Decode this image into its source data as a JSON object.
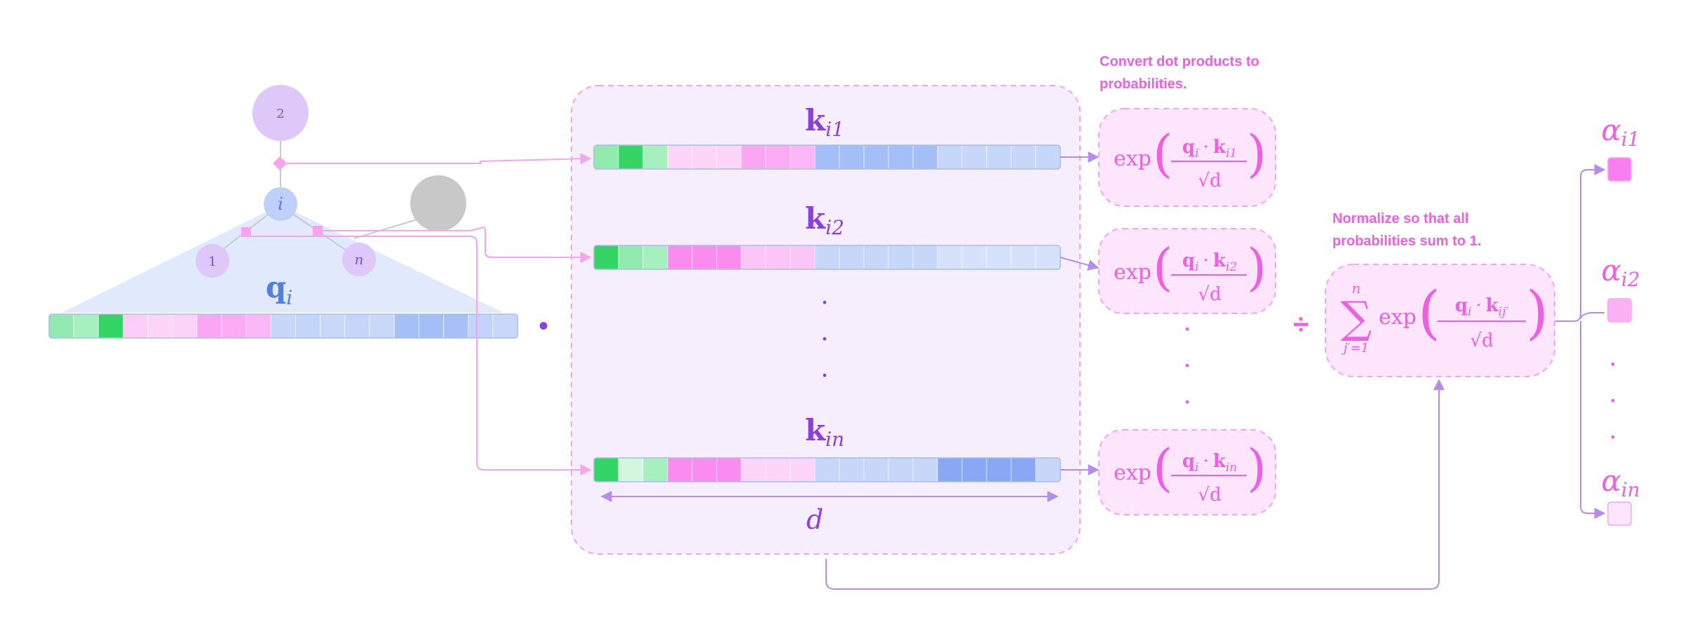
{
  "tree": {
    "root_label": "2",
    "node_i_label": "i",
    "leaf_1_label": "1",
    "leaf_n_label": "n"
  },
  "query": {
    "symbol": "q",
    "subscript": "i",
    "cells": [
      "#93eab0",
      "#a6efbf",
      "#34d465",
      "#fccdf7",
      "#fcd5f8",
      "#fcd3f8",
      "#fba6f3",
      "#fbaaf4",
      "#fbb6f5",
      "#c6d7f9",
      "#c4d5fa",
      "#c8d8f9",
      "#c5d6f9",
      "#c8d8f9",
      "#a5c0f6",
      "#a4bff7",
      "#a7c1f7",
      "#c2d4fa",
      "#c7d8f9"
    ]
  },
  "dot_symbol": "•",
  "keys": [
    {
      "id": "k1",
      "symbol": "k",
      "subscript": "i1",
      "cells": [
        "#93eab0",
        "#34d465",
        "#a6efbf",
        "#fcd5f8",
        "#fcd5f8",
        "#fcd5f8",
        "#fba6f3",
        "#fbaaf4",
        "#fbb6f5",
        "#a4bff7",
        "#a4bff7",
        "#a4bff7",
        "#a4bff7",
        "#a4bff7",
        "#c6d7f9",
        "#c6d7f9",
        "#c6d7f9",
        "#c6d7f9",
        "#c6d7f9"
      ]
    },
    {
      "id": "k2",
      "symbol": "k",
      "subscript": "i2",
      "cells": [
        "#34d465",
        "#93eab0",
        "#a6efbf",
        "#fa8cf0",
        "#fa8cf0",
        "#fa8cf0",
        "#fcc5f7",
        "#fcc5f7",
        "#fcc5f7",
        "#c6d7f9",
        "#c6d7f9",
        "#c6d7f9",
        "#c6d7f9",
        "#c6d7f9",
        "#d6e1fb",
        "#d6e1fb",
        "#d6e1fb",
        "#d6e1fb",
        "#d6e1fb"
      ]
    },
    {
      "id": "kn",
      "symbol": "k",
      "subscript": "in",
      "cells": [
        "#34d465",
        "#d2f7de",
        "#a6efbf",
        "#fa8cf0",
        "#fa8cf0",
        "#fa8cf0",
        "#fcd5f8",
        "#fcd5f8",
        "#fcd5f8",
        "#c6d7f9",
        "#c6d7f9",
        "#c6d7f9",
        "#c6d7f9",
        "#c6d7f9",
        "#88a8f3",
        "#88a8f3",
        "#88a8f3",
        "#88a8f3",
        "#c6d7f9"
      ]
    }
  ],
  "ellipsis": "·",
  "dimension_label": "d",
  "annotations": {
    "convert": [
      "Convert dot products to",
      "probabilities."
    ],
    "normalize": [
      "Normalize so that all",
      "probabilities sum to 1."
    ]
  },
  "formulas": [
    {
      "id": "f1",
      "exp": "exp",
      "numerator_q": "q",
      "numerator_q_sub": "i",
      "dot": "·",
      "numerator_k": "k",
      "numerator_k_sub": "i1",
      "denominator": "√d"
    },
    {
      "id": "f2",
      "exp": "exp",
      "numerator_q": "q",
      "numerator_q_sub": "i",
      "dot": "·",
      "numerator_k": "k",
      "numerator_k_sub": "i2",
      "denominator": "√d"
    },
    {
      "id": "fn",
      "exp": "exp",
      "numerator_q": "q",
      "numerator_q_sub": "i",
      "dot": "·",
      "numerator_k": "k",
      "numerator_k_sub": "in",
      "denominator": "√d"
    }
  ],
  "divide_symbol": "÷",
  "sum_formula": {
    "sigma": "∑",
    "upper": "n",
    "lower": "j′=1",
    "exp": "exp",
    "numerator_q": "q",
    "numerator_q_sub": "i",
    "dot": "·",
    "numerator_k": "k",
    "numerator_k_sub": "ij′",
    "denominator": "√d"
  },
  "outputs": [
    {
      "id": "a1",
      "symbol": "α",
      "subscript": "i1",
      "color": "#f97ff0"
    },
    {
      "id": "a2",
      "symbol": "α",
      "subscript": "i2",
      "color": "#fbb2f4"
    },
    {
      "id": "an",
      "symbol": "α",
      "subscript": "in",
      "color": "#fde6fb"
    }
  ],
  "colors": {
    "pink_accent": "#ee5fe4",
    "purple_accent": "#8b3fe0",
    "blue_accent": "#4f7fe0",
    "arrow_pink": "#f3a6ee",
    "arrow_purple": "#b48cf0",
    "box_fill": "#f6edfd",
    "formula_fill": "#fde6fb"
  }
}
